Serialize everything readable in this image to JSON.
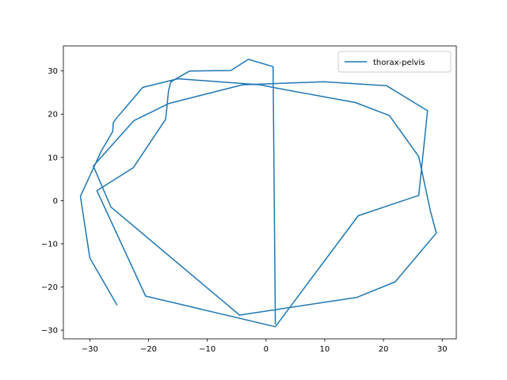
{
  "chart_data": {
    "type": "line",
    "title": "",
    "xlabel": "",
    "ylabel": "",
    "xlim": [
      -34.5,
      32.4
    ],
    "ylim": [
      -32.0,
      35.8
    ],
    "xticks": [
      -30,
      -20,
      -10,
      0,
      10,
      20,
      30
    ],
    "yticks": [
      -30,
      -20,
      -10,
      0,
      10,
      20,
      30
    ],
    "grid": false,
    "legend_position": "upper right",
    "series": [
      {
        "name": "thorax-pelvis",
        "color": "#1f77b4",
        "x": [
          -25.4,
          -30.0,
          -31.6,
          -28.0,
          -26.1,
          -26.0,
          -25.5,
          -21.0,
          -15.0,
          -1.0,
          1.5,
          15.2,
          21.0,
          26.0,
          28.0,
          29.0,
          22.0,
          15.5,
          -4.5,
          -26.4,
          -29.4,
          -22.5,
          -16.5,
          -4.0,
          9.8,
          20.5,
          27.5,
          26.0,
          15.7,
          1.6,
          -20.5,
          -28.8,
          -22.6,
          -17.1,
          -16.9,
          -16.6,
          -16.2,
          -13.0,
          -6.0,
          -3.0,
          1.2,
          1.6
        ],
        "y": [
          -24.1,
          -13.3,
          1.0,
          11.6,
          16.0,
          18.0,
          19.0,
          26.2,
          28.2,
          26.8,
          26.1,
          22.7,
          19.7,
          10.2,
          -2.5,
          -7.5,
          -18.8,
          -22.4,
          -26.5,
          -1.5,
          8.0,
          18.5,
          22.5,
          26.8,
          27.5,
          26.6,
          20.8,
          1.2,
          -3.5,
          -29.2,
          -22.1,
          2.3,
          7.6,
          18.8,
          21.2,
          25.4,
          27.5,
          30.0,
          30.1,
          32.7,
          31.0,
          -28.5
        ]
      }
    ]
  }
}
